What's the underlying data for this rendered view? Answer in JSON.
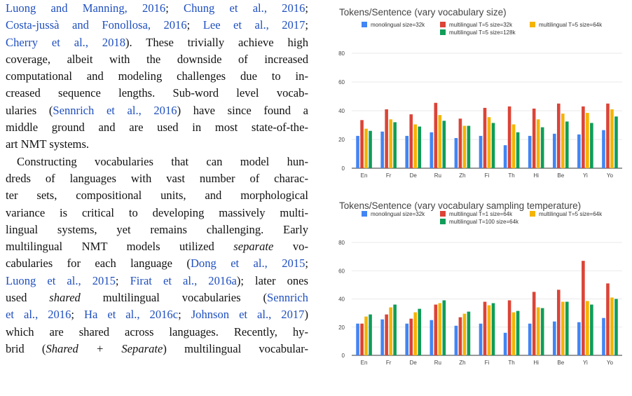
{
  "text": {
    "p1": {
      "l1": [
        {
          "t": "Luong and Manning, 2016",
          "c": true
        },
        {
          "t": "; "
        },
        {
          "t": "Chung et al., 2016",
          "c": true
        },
        {
          "t": ";"
        }
      ],
      "l2": [
        {
          "t": "Costa-jussà and Fonollosa, 2016",
          "c": true
        },
        {
          "t": "; "
        },
        {
          "t": "Lee et al., 2017",
          "c": true
        },
        {
          "t": ";"
        }
      ],
      "l3": [
        {
          "t": "Cherry et al., 2018",
          "c": true
        },
        {
          "t": "). These trivially achieve high"
        }
      ],
      "l4": [
        {
          "t": "coverage, albeit with the downside of increased"
        }
      ],
      "l5": [
        {
          "t": "computational and modeling challenges due to in-"
        }
      ],
      "l6": [
        {
          "t": "creased sequence lengths. Sub-word level vocab-"
        }
      ],
      "l7": [
        {
          "t": "ularies ("
        },
        {
          "t": "Sennrich et al., 2016",
          "c": true
        },
        {
          "t": ") have since found a"
        }
      ],
      "l8": [
        {
          "t": "middle ground and are used in most state-of-the-"
        }
      ],
      "l9": [
        {
          "t": "art NMT systems."
        }
      ]
    },
    "p2": {
      "l1": [
        {
          "t": "Constructing vocabularies that can model hun-"
        }
      ],
      "l2": [
        {
          "t": "dreds of languages with vast number of charac-"
        }
      ],
      "l3": [
        {
          "t": "ter sets, compositional units, and morphological"
        }
      ],
      "l4": [
        {
          "t": "variance is critical to developing massively multi-"
        }
      ],
      "l5": [
        {
          "t": "lingual systems, yet remains challenging. Early"
        }
      ],
      "l6": [
        {
          "t": "multilingual NMT models utilized "
        },
        {
          "t": "separate",
          "i": true
        },
        {
          "t": " vo-"
        }
      ],
      "l7": [
        {
          "t": "cabularies for each language  ("
        },
        {
          "t": "Dong et al., 2015",
          "c": true
        },
        {
          "t": ";"
        }
      ],
      "l8": [
        {
          "t": "Luong et al., 2015",
          "c": true
        },
        {
          "t": "; "
        },
        {
          "t": "Firat et al., 2016a",
          "c": true
        },
        {
          "t": "); later ones"
        }
      ],
      "l9": [
        {
          "t": "used "
        },
        {
          "t": "shared",
          "i": true
        },
        {
          "t": " multilingual vocabularies  ("
        },
        {
          "t": "Sennrich",
          "c": true
        }
      ],
      "l10": [
        {
          "t": "et al., 2016",
          "c": true
        },
        {
          "t": "; "
        },
        {
          "t": "Ha et al., 2016c",
          "c": true
        },
        {
          "t": "; "
        },
        {
          "t": "Johnson et al., 2017",
          "c": true
        },
        {
          "t": ")"
        }
      ],
      "l11": [
        {
          "t": "which are shared across languages. Recently, hy-"
        }
      ],
      "l12": [
        {
          "t": "brid ("
        },
        {
          "t": "Shared + Separate",
          "i": true
        },
        {
          "t": ") multilingual vocabular-"
        }
      ]
    }
  },
  "colors": {
    "blue": "#4285f4",
    "red": "#db4437",
    "yellow": "#f4b400",
    "green": "#0f9d58",
    "link": "#1f4fbf"
  },
  "charts": [
    {
      "title": "Tokens/Sentence (vary vocabulary size)",
      "chart_data": {
        "type": "bar",
        "categories": [
          "En",
          "Fr",
          "De",
          "Ru",
          "Zh",
          "Fi",
          "Th",
          "Hi",
          "Be",
          "Yi",
          "Yo"
        ],
        "ylim": [
          0,
          80
        ],
        "yticks": [
          "0",
          "20",
          "40",
          "60",
          "80"
        ],
        "series": [
          {
            "name": "monolingual size=32k",
            "color": "blue",
            "values": [
              22.5,
              25.5,
              22.5,
              25,
              21,
              22.5,
              16,
              22.5,
              24,
              23.5,
              26.5
            ]
          },
          {
            "name": "multilingual T=5 size=32k",
            "color": "red",
            "values": [
              33.5,
              41,
              37.5,
              45.5,
              34.5,
              42,
              43,
              41.5,
              45,
              43,
              45
            ]
          },
          {
            "name": "multilingual T=5 size=64k",
            "color": "yellow",
            "values": [
              27.5,
              34,
              30.5,
              37,
              29.5,
              35.5,
              30.5,
              34,
              38,
              38.5,
              41
            ]
          },
          {
            "name": "multilingual T=5 size=128k",
            "color": "green",
            "values": [
              26,
              32,
              29,
              33,
              29.5,
              31.5,
              25,
              28.5,
              32.5,
              31.5,
              36
            ]
          }
        ]
      }
    },
    {
      "title": "Tokens/Sentence (vary vocabulary sampling temperature)",
      "chart_data": {
        "type": "bar",
        "categories": [
          "En",
          "Fr",
          "De",
          "Ru",
          "Zh",
          "Fi",
          "Th",
          "Hi",
          "Be",
          "Yi",
          "Yo"
        ],
        "ylim": [
          0,
          80
        ],
        "yticks": [
          "0",
          "20",
          "40",
          "60",
          "80"
        ],
        "series": [
          {
            "name": "monolingual size=32k",
            "color": "blue",
            "values": [
              22.5,
              25.5,
              22.5,
              25,
              21,
              22.5,
              16,
              22.5,
              24,
              23.5,
              26.5
            ]
          },
          {
            "name": "multilingual T=1 size=64k",
            "color": "red",
            "values": [
              22.5,
              29,
              26,
              36,
              27,
              38,
              39,
              45,
              46.5,
              67,
              51
            ]
          },
          {
            "name": "multilingual T=5 size=64k",
            "color": "yellow",
            "values": [
              27.5,
              34,
              30.5,
              37,
              29.5,
              35.5,
              30.5,
              34,
              38,
              38.5,
              41
            ]
          },
          {
            "name": "multilingual T=100 size=64k",
            "color": "green",
            "values": [
              29,
              36,
              33,
              39,
              31,
              37,
              31.5,
              33.5,
              38,
              36,
              40
            ]
          }
        ]
      }
    }
  ]
}
